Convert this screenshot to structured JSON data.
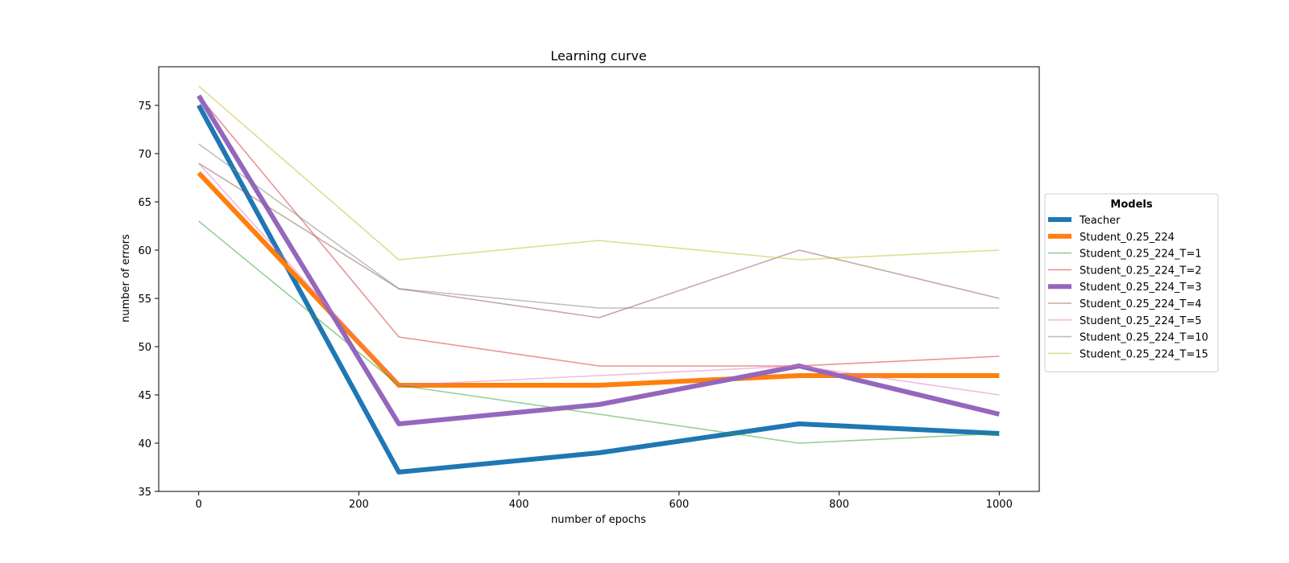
{
  "chart_data": {
    "type": "line",
    "title": "Learning curve",
    "xlabel": "number of epochs",
    "ylabel": "number of errors",
    "x": [
      0,
      250,
      500,
      750,
      1000
    ],
    "xlim": [
      -50,
      1050
    ],
    "ylim": [
      35,
      79
    ],
    "xticks": [
      0,
      200,
      400,
      600,
      800,
      1000
    ],
    "yticks": [
      35,
      40,
      45,
      50,
      55,
      60,
      65,
      70,
      75
    ],
    "grid": false,
    "legend": {
      "title": "Models",
      "placement": "center-right outside"
    },
    "series": [
      {
        "name": "Teacher",
        "values": [
          75,
          37,
          39,
          42,
          41
        ],
        "color": "#1f77b4",
        "emphasis": "thick"
      },
      {
        "name": "Student_0.25_224",
        "values": [
          68,
          46,
          46,
          47,
          47
        ],
        "color": "#ff7f0e",
        "emphasis": "thick"
      },
      {
        "name": "Student_0.25_224_T=1",
        "values": [
          63,
          46,
          43,
          40,
          41
        ],
        "color": "#2ca02c",
        "emphasis": "thin"
      },
      {
        "name": "Student_0.25_224_T=2",
        "values": [
          76,
          51,
          48,
          48,
          49
        ],
        "color": "#d62728",
        "emphasis": "thin"
      },
      {
        "name": "Student_0.25_224_T=3",
        "values": [
          76,
          42,
          44,
          48,
          43
        ],
        "color": "#9467bd",
        "emphasis": "thick"
      },
      {
        "name": "Student_0.25_224_T=4",
        "values": [
          69,
          56,
          53,
          60,
          55
        ],
        "color": "#8c564b",
        "emphasis": "thin"
      },
      {
        "name": "Student_0.25_224_T=5",
        "values": [
          69,
          46,
          47,
          48,
          45
        ],
        "color": "#e377c2",
        "emphasis": "thin"
      },
      {
        "name": "Student_0.25_224_T=10",
        "values": [
          71,
          56,
          54,
          54,
          54
        ],
        "color": "#7f7f7f",
        "emphasis": "thin"
      },
      {
        "name": "Student_0.25_224_T=15",
        "values": [
          77,
          59,
          61,
          59,
          60
        ],
        "color": "#bcbd22",
        "emphasis": "thin"
      }
    ]
  }
}
